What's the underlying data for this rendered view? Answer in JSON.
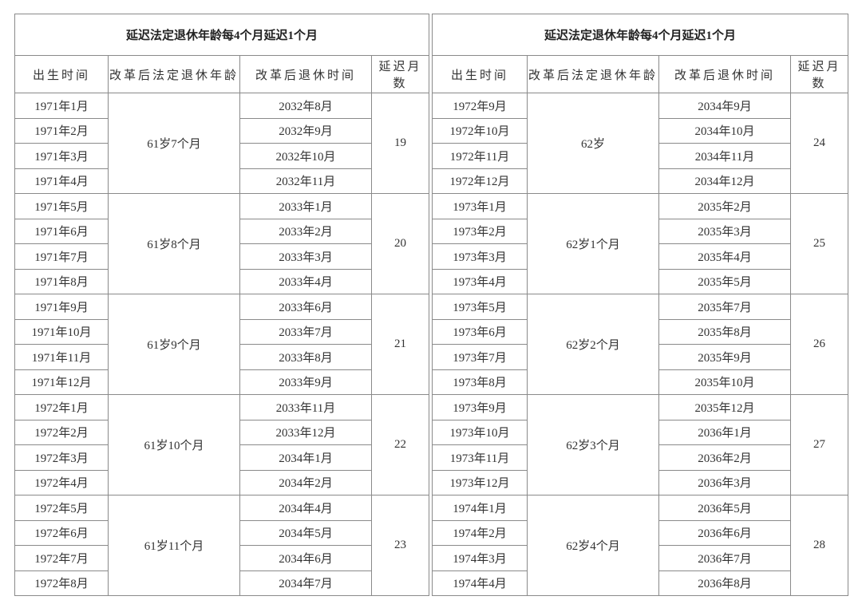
{
  "tables": [
    {
      "title": "延迟法定退休年龄每4个月延迟1个月",
      "headers": [
        "出生时间",
        "改革后法定退休年龄",
        "改革后退休时间",
        "延迟月数"
      ],
      "groups": [
        {
          "age": "61岁7个月",
          "delay": "19",
          "rows": [
            [
              "1971年1月",
              "2032年8月"
            ],
            [
              "1971年2月",
              "2032年9月"
            ],
            [
              "1971年3月",
              "2032年10月"
            ],
            [
              "1971年4月",
              "2032年11月"
            ]
          ]
        },
        {
          "age": "61岁8个月",
          "delay": "20",
          "rows": [
            [
              "1971年5月",
              "2033年1月"
            ],
            [
              "1971年6月",
              "2033年2月"
            ],
            [
              "1971年7月",
              "2033年3月"
            ],
            [
              "1971年8月",
              "2033年4月"
            ]
          ]
        },
        {
          "age": "61岁9个月",
          "delay": "21",
          "rows": [
            [
              "1971年9月",
              "2033年6月"
            ],
            [
              "1971年10月",
              "2033年7月"
            ],
            [
              "1971年11月",
              "2033年8月"
            ],
            [
              "1971年12月",
              "2033年9月"
            ]
          ]
        },
        {
          "age": "61岁10个月",
          "delay": "22",
          "rows": [
            [
              "1972年1月",
              "2033年11月"
            ],
            [
              "1972年2月",
              "2033年12月"
            ],
            [
              "1972年3月",
              "2034年1月"
            ],
            [
              "1972年4月",
              "2034年2月"
            ]
          ]
        },
        {
          "age": "61岁11个月",
          "delay": "23",
          "rows": [
            [
              "1972年5月",
              "2034年4月"
            ],
            [
              "1972年6月",
              "2034年5月"
            ],
            [
              "1972年7月",
              "2034年6月"
            ],
            [
              "1972年8月",
              "2034年7月"
            ]
          ]
        }
      ]
    },
    {
      "title": "延迟法定退休年龄每4个月延迟1个月",
      "headers": [
        "出生时间",
        "改革后法定退休年龄",
        "改革后退休时间",
        "延迟月数"
      ],
      "groups": [
        {
          "age": "62岁",
          "delay": "24",
          "rows": [
            [
              "1972年9月",
              "2034年9月"
            ],
            [
              "1972年10月",
              "2034年10月"
            ],
            [
              "1972年11月",
              "2034年11月"
            ],
            [
              "1972年12月",
              "2034年12月"
            ]
          ]
        },
        {
          "age": "62岁1个月",
          "delay": "25",
          "rows": [
            [
              "1973年1月",
              "2035年2月"
            ],
            [
              "1973年2月",
              "2035年3月"
            ],
            [
              "1973年3月",
              "2035年4月"
            ],
            [
              "1973年4月",
              "2035年5月"
            ]
          ]
        },
        {
          "age": "62岁2个月",
          "delay": "26",
          "rows": [
            [
              "1973年5月",
              "2035年7月"
            ],
            [
              "1973年6月",
              "2035年8月"
            ],
            [
              "1973年7月",
              "2035年9月"
            ],
            [
              "1973年8月",
              "2035年10月"
            ]
          ]
        },
        {
          "age": "62岁3个月",
          "delay": "27",
          "rows": [
            [
              "1973年9月",
              "2035年12月"
            ],
            [
              "1973年10月",
              "2036年1月"
            ],
            [
              "1973年11月",
              "2036年2月"
            ],
            [
              "1973年12月",
              "2036年3月"
            ]
          ]
        },
        {
          "age": "62岁4个月",
          "delay": "28",
          "rows": [
            [
              "1974年1月",
              "2036年5月"
            ],
            [
              "1974年2月",
              "2036年6月"
            ],
            [
              "1974年3月",
              "2036年7月"
            ],
            [
              "1974年4月",
              "2036年8月"
            ]
          ]
        }
      ]
    }
  ]
}
